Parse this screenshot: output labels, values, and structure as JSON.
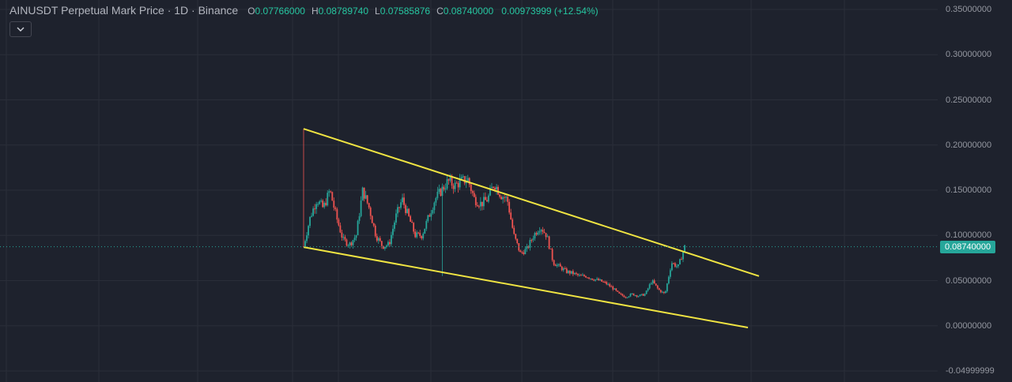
{
  "header": {
    "title": "AINUSDT Perpetual Mark Price · 1D · Binance",
    "open_label": "O",
    "open_value": "0.07766000",
    "high_label": "H",
    "high_value": "0.08789740",
    "low_label": "L",
    "low_value": "0.07585876",
    "close_label": "C",
    "close_value": "0.08740000",
    "change": "0.00973999 (+12.54%)"
  },
  "toggle": {
    "icon": "chevron-down-icon"
  },
  "price_axis": {
    "ticks": [
      "0.35000000",
      "0.30000000",
      "0.25000000",
      "0.20000000",
      "0.15000000",
      "0.10000000",
      "0.05000000",
      "0.00000000",
      "-0.04999999"
    ],
    "current_price_label": "0.08740000"
  },
  "colors": {
    "background": "#1e222d",
    "grid": "#2a2e39",
    "up": "#26a69a",
    "down": "#ef5350",
    "trendline": "#f0e442",
    "text": "#b2b5be"
  },
  "chart_data": {
    "type": "candlestick",
    "symbol": "AINUSDT",
    "interval": "1D",
    "exchange": "Binance",
    "ylim": [
      -0.05,
      0.35
    ],
    "y_ticks": [
      0.35,
      0.3,
      0.25,
      0.2,
      0.15,
      0.1,
      0.05,
      0.0,
      -0.05
    ],
    "last_price": 0.0874,
    "grid": true,
    "close_path": [
      0.088,
      0.12,
      0.14,
      0.13,
      0.15,
      0.12,
      0.095,
      0.09,
      0.1,
      0.15,
      0.13,
      0.1,
      0.088,
      0.09,
      0.12,
      0.14,
      0.12,
      0.1,
      0.1,
      0.12,
      0.14,
      0.15,
      0.16,
      0.155,
      0.16,
      0.162,
      0.14,
      0.135,
      0.14,
      0.158,
      0.145,
      0.14,
      0.1,
      0.08,
      0.085,
      0.1,
      0.11,
      0.1,
      0.07,
      0.065,
      0.06,
      0.058,
      0.055,
      0.055,
      0.052,
      0.05,
      0.047,
      0.042,
      0.035,
      0.032,
      0.035,
      0.033,
      0.035,
      0.05,
      0.04,
      0.035,
      0.07,
      0.065,
      0.0874
    ],
    "trendlines": [
      {
        "from": [
          0,
          0.218
        ],
        "to": [
          1,
          0.055
        ]
      },
      {
        "from": [
          0,
          0.087
        ],
        "to": [
          1,
          -0.002
        ]
      }
    ]
  }
}
